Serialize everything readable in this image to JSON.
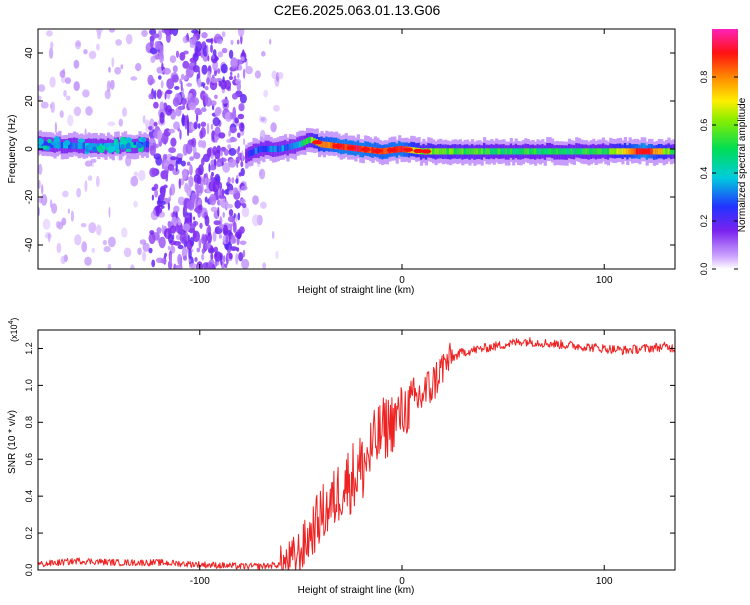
{
  "title": "C2E6.2025.063.01.13.G06",
  "colors": {
    "snr_line": "#ee2222",
    "spectrum_low": "#7a22ee",
    "spectrum_mid": "#00dd88",
    "spectrum_high": "#ee1111"
  },
  "chart_data": [
    {
      "type": "heatmap",
      "title": "",
      "xlabel": "Height of straight line (km)",
      "ylabel": "Frequency (Hz)",
      "xlim": [
        -180,
        135
      ],
      "ylim": [
        -50,
        50
      ],
      "xticks": [
        -100,
        0,
        100
      ],
      "yticks": [
        -40,
        -20,
        0,
        20,
        40
      ],
      "colorbar": {
        "label": "Normalized spectral amplitude",
        "range": [
          0.0,
          1.0
        ],
        "ticks": [
          "0.0",
          "0.2",
          "0.4",
          "0.6",
          "0.8"
        ],
        "colormap": "rainbow (purple-blue-cyan-green-yellow-red-magenta)",
        "placement": "right"
      },
      "grid": false,
      "signal_track": {
        "x": [
          -180,
          -150,
          -125,
          -78,
          -70,
          -60,
          -50,
          -45,
          -40,
          -30,
          -20,
          -10,
          0,
          10,
          50,
          100,
          120,
          135
        ],
        "freq_center": [
          2,
          1,
          2,
          -3,
          0,
          0,
          2,
          4,
          2,
          1,
          0,
          -1,
          0,
          -1,
          -1,
          -1,
          -1,
          -1
        ],
        "amplitude": [
          0.3,
          0.35,
          0.3,
          0.2,
          0.3,
          0.3,
          0.4,
          0.55,
          0.8,
          0.9,
          0.9,
          0.85,
          0.9,
          0.6,
          0.5,
          0.5,
          0.95,
          0.5
        ]
      },
      "noise_band": {
        "x_from": -125,
        "x_to": -78
      }
    },
    {
      "type": "line",
      "title": "",
      "xlabel": "Height of straight line (km)",
      "ylabel": "SNR (10 * v/v)",
      "scale_label": "(x10",
      "scale_exp": "4",
      "xlim": [
        -180,
        135
      ],
      "ylim": [
        0,
        1.3
      ],
      "xticks": [
        -100,
        0,
        100
      ],
      "yticks": [
        "0.0",
        "0.2",
        "0.4",
        "0.6",
        "0.8",
        "1.0",
        "1.2"
      ],
      "grid": false,
      "series": [
        {
          "x": [
            -180,
            -160,
            -140,
            -120,
            -100,
            -80,
            -70,
            -60,
            -55,
            -50,
            -45,
            -40,
            -35,
            -30,
            -25,
            -20,
            -15,
            -10,
            -5,
            0,
            5,
            10,
            15,
            20,
            25,
            30,
            40,
            50,
            60,
            70,
            80,
            90,
            100,
            110,
            120,
            130,
            135
          ],
          "values": [
            0.03,
            0.05,
            0.04,
            0.04,
            0.03,
            0.02,
            0.02,
            0.03,
            0.05,
            0.1,
            0.2,
            0.3,
            0.35,
            0.45,
            0.5,
            0.55,
            0.65,
            0.75,
            0.8,
            0.85,
            0.9,
            0.95,
            1.0,
            1.1,
            1.15,
            1.18,
            1.2,
            1.22,
            1.24,
            1.23,
            1.22,
            1.21,
            1.2,
            1.19,
            1.2,
            1.21,
            1.2
          ]
        }
      ]
    }
  ]
}
